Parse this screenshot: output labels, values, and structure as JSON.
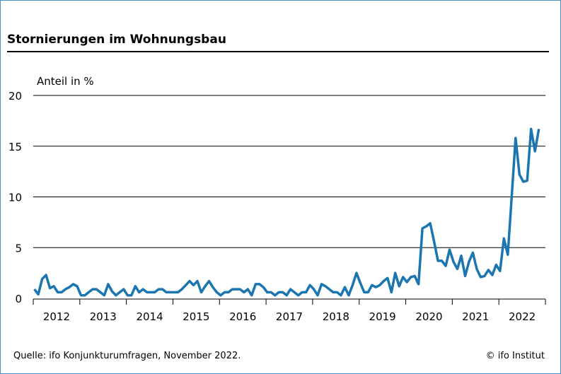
{
  "chart_data": {
    "type": "line",
    "title": "Stornierungen im Wohnungsbau",
    "ylabel": "Anteil in %",
    "xlabel": "",
    "ylim": [
      0,
      20
    ],
    "yticks": [
      "0",
      "5",
      "10",
      "15",
      "20"
    ],
    "ytick_values": [
      0,
      5,
      10,
      15,
      20
    ],
    "xtick_labels": [
      "2012",
      "2013",
      "2014",
      "2015",
      "2016",
      "2017",
      "2018",
      "2019",
      "2020",
      "2021",
      "2022"
    ],
    "frequency": "monthly, Jan 2012 – Nov 2022",
    "grid": "horizontal",
    "line_color": "#1a75b0",
    "series": [
      {
        "name": "Stornierungen",
        "values": [
          0.9,
          0.4,
          1.9,
          2.3,
          1.0,
          1.2,
          0.6,
          0.6,
          0.9,
          1.1,
          1.4,
          1.2,
          0.3,
          0.3,
          0.6,
          0.9,
          0.9,
          0.6,
          0.3,
          1.4,
          0.7,
          0.3,
          0.6,
          0.9,
          0.3,
          0.3,
          1.2,
          0.6,
          0.9,
          0.6,
          0.6,
          0.6,
          0.9,
          0.9,
          0.6,
          0.6,
          0.6,
          0.6,
          0.9,
          1.3,
          1.7,
          1.3,
          1.7,
          0.6,
          1.2,
          1.7,
          1.1,
          0.6,
          0.3,
          0.6,
          0.6,
          0.9,
          0.9,
          0.9,
          0.6,
          0.9,
          0.3,
          1.4,
          1.4,
          1.1,
          0.6,
          0.6,
          0.3,
          0.6,
          0.6,
          0.3,
          0.9,
          0.6,
          0.3,
          0.6,
          0.6,
          1.3,
          0.9,
          0.3,
          1.4,
          1.2,
          0.9,
          0.6,
          0.6,
          0.3,
          1.1,
          0.3,
          1.3,
          2.5,
          1.5,
          0.6,
          0.6,
          1.3,
          1.1,
          1.3,
          1.7,
          2.0,
          0.6,
          2.5,
          1.2,
          2.1,
          1.6,
          2.1,
          2.2,
          1.4,
          6.9,
          7.1,
          7.4,
          5.6,
          3.7,
          3.7,
          3.2,
          4.8,
          3.6,
          2.9,
          4.2,
          2.2,
          3.6,
          4.5,
          2.9,
          2.1,
          2.2,
          2.8,
          2.3,
          3.3,
          2.7,
          5.9,
          4.3,
          10.0,
          15.8,
          12.2,
          11.5,
          11.6,
          16.7,
          14.5,
          16.7
        ]
      }
    ]
  },
  "source": "Quelle: ifo Konjunkturumfragen, November 2022.",
  "copyright": "© ifo Institut"
}
